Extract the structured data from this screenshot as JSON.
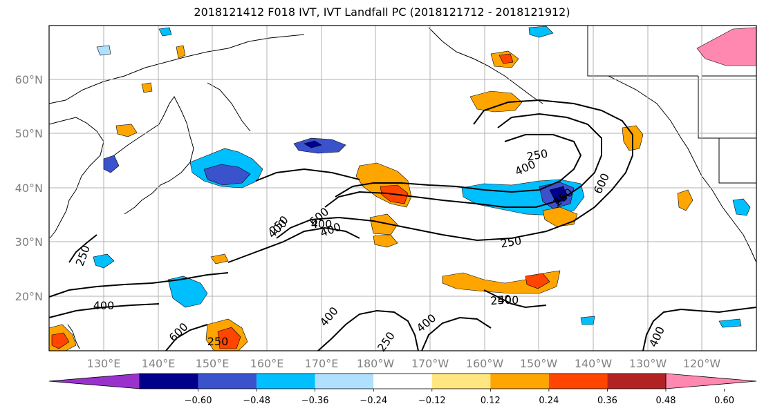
{
  "title": "2018121412 F018 IVT, IVT Landfall PC (2018121712 - 2018121912)",
  "map": {
    "lat_ticks": [
      "60°N",
      "50°N",
      "40°N",
      "30°N",
      "20°N"
    ],
    "lon_ticks": [
      "130°E",
      "140°E",
      "150°E",
      "160°E",
      "170°E",
      "180°W",
      "170°W",
      "160°W",
      "150°W",
      "140°W",
      "130°W",
      "120°W"
    ],
    "contour_labels": [
      "250",
      "400",
      "600",
      "250",
      "400",
      "600",
      "250",
      "400",
      "600",
      "400",
      "250",
      "400",
      "250",
      "400",
      "400",
      "250",
      "250",
      "400",
      "250",
      "400"
    ]
  },
  "colorbar": {
    "ticks": [
      "−0.60",
      "−0.48",
      "−0.36",
      "−0.24",
      "−0.12",
      "0.12",
      "0.24",
      "0.36",
      "0.48",
      "0.60"
    ],
    "colors": [
      "#9932cc",
      "#00008b",
      "#3a52cc",
      "#00bfff",
      "#b0e0ff",
      "#ffffff",
      "#ffe680",
      "#ffa500",
      "#ff4500",
      "#b22222",
      "#ff88b0"
    ]
  }
}
